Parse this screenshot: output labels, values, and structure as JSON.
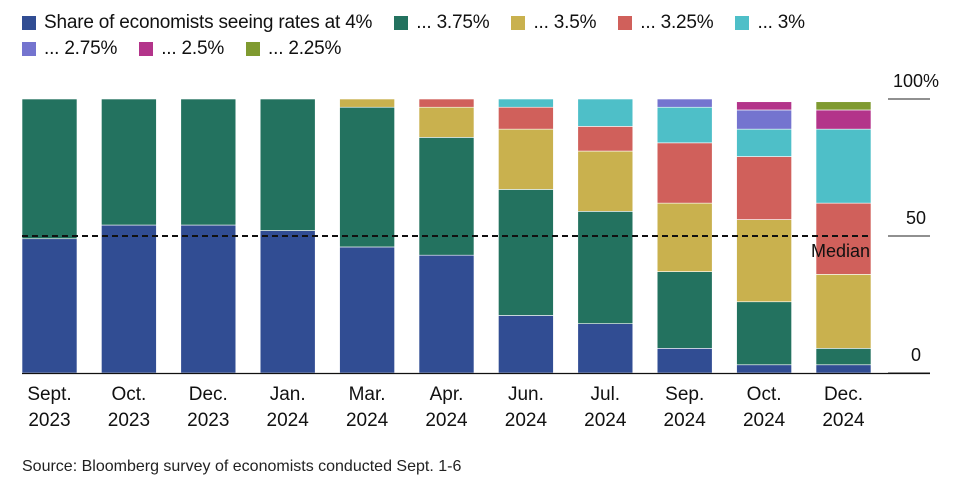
{
  "legend": {
    "rows": [
      [
        {
          "label": "Share of economists seeing rates at 4%",
          "color": "#314d93"
        },
        {
          "label": "... 3.75%",
          "color": "#23725f"
        },
        {
          "label": "... 3.5%",
          "color": "#c9b14e"
        },
        {
          "label": "... 3.25%",
          "color": "#d0605b"
        },
        {
          "label": "... 3%",
          "color": "#4ebfc8"
        }
      ],
      [
        {
          "label": "... 2.75%",
          "color": "#7474cf"
        },
        {
          "label": "... 2.5%",
          "color": "#b3348a"
        },
        {
          "label": "... 2.25%",
          "color": "#7f9a30"
        }
      ]
    ]
  },
  "source": "Source: Bloomberg survey of economists conducted Sept. 1-6",
  "chart_data": {
    "type": "bar",
    "stacked": true,
    "categories": [
      [
        "Sept.",
        "2023"
      ],
      [
        "Oct.",
        "2023"
      ],
      [
        "Dec.",
        "2023"
      ],
      [
        "Jan.",
        "2024"
      ],
      [
        "Mar.",
        "2024"
      ],
      [
        "Apr.",
        "2024"
      ],
      [
        "Jun.",
        "2024"
      ],
      [
        "Jul.",
        "2024"
      ],
      [
        "Sep.",
        "2024"
      ],
      [
        "Oct.",
        "2024"
      ],
      [
        "Dec.",
        "2024"
      ]
    ],
    "series": [
      {
        "name": "Share of economists seeing rates at 4%",
        "color": "#314d93",
        "values": [
          49,
          54,
          54,
          52,
          46,
          43,
          21,
          18,
          9,
          3,
          3
        ]
      },
      {
        "name": "... 3.75%",
        "color": "#23725f",
        "values": [
          51,
          46,
          46,
          48,
          51,
          43,
          46,
          41,
          28,
          23,
          6
        ]
      },
      {
        "name": "... 3.5%",
        "color": "#c9b14e",
        "values": [
          0,
          0,
          0,
          0,
          3,
          11,
          22,
          22,
          25,
          30,
          27
        ]
      },
      {
        "name": "... 3.25%",
        "color": "#d0605b",
        "values": [
          0,
          0,
          0,
          0,
          0,
          3,
          8,
          9,
          22,
          23,
          26
        ]
      },
      {
        "name": "... 3%",
        "color": "#4ebfc8",
        "values": [
          0,
          0,
          0,
          0,
          0,
          0,
          3,
          10,
          13,
          10,
          27
        ]
      },
      {
        "name": "... 2.75%",
        "color": "#7474cf",
        "values": [
          0,
          0,
          0,
          0,
          0,
          0,
          0,
          0,
          3,
          7,
          0
        ]
      },
      {
        "name": "... 2.5%",
        "color": "#b3348a",
        "values": [
          0,
          0,
          0,
          0,
          0,
          0,
          0,
          0,
          0,
          3,
          7
        ]
      },
      {
        "name": "... 2.25%",
        "color": "#7f9a30",
        "values": [
          0,
          0,
          0,
          0,
          0,
          0,
          0,
          0,
          0,
          0,
          3
        ]
      }
    ],
    "ylim": [
      0,
      100
    ],
    "yticks": [
      {
        "value": 0,
        "label": "0"
      },
      {
        "value": 50,
        "label": "50"
      },
      {
        "value": 100,
        "label": "100%"
      }
    ],
    "median": {
      "value": 50,
      "label": "Median"
    }
  }
}
